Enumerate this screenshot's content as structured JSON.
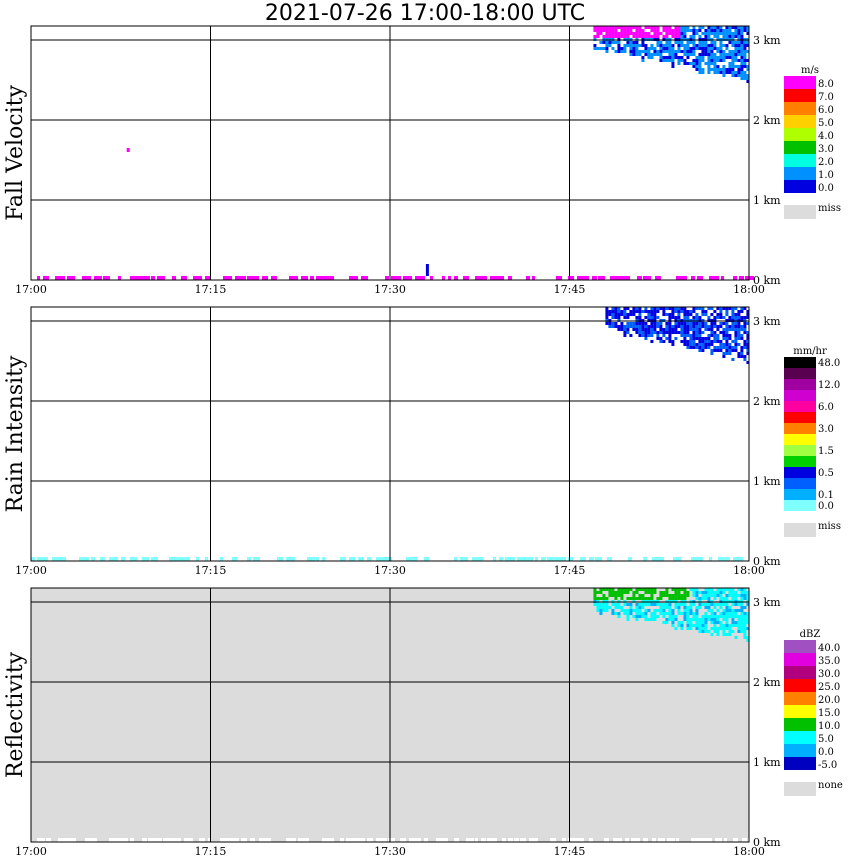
{
  "title": "2021-07-26   17:00-18:00 UTC",
  "x_ticks": [
    "17:00",
    "17:15",
    "17:30",
    "17:45",
    "18:00"
  ],
  "y_ticks": [
    "0 km",
    "1 km",
    "2 km",
    "3 km"
  ],
  "chart_data": [
    {
      "type": "heatmap",
      "ylabel": "Fall Velocity",
      "xlabel": "",
      "x_range": [
        "17:00",
        "18:00"
      ],
      "y_range_km": [
        0,
        3.2
      ],
      "grid": true,
      "background": "#ffffff",
      "colorbar": {
        "unit": "m/s",
        "labels": [
          "8.0",
          "7.0",
          "6.0",
          "5.0",
          "4.0",
          "3.0",
          "2.0",
          "1.0",
          "0.0"
        ],
        "colors": [
          "#ff00ff",
          "#ff0000",
          "#ff8000",
          "#ffd000",
          "#b0ff00",
          "#00c000",
          "#00ffe0",
          "#0090ff",
          "#0000e0"
        ],
        "missing_label": "miss",
        "missing_color": "#dcdcdc"
      },
      "echoes": [
        {
          "t_start": "17:47",
          "t_end": "18:00",
          "z_bottom_km": 2.55,
          "z_top_km": 3.2,
          "dominant": "1.0-2.0 m/s, top portion 7.0-8.0 m/s"
        },
        {
          "t_start": "17:00",
          "t_end": "18:00",
          "z_bottom_km": 0.0,
          "z_top_km": 0.05,
          "dominant": "8.0 m/s near-surface speckle"
        },
        {
          "t_start": "17:08",
          "t_end": "17:08",
          "z_bottom_km": 1.6,
          "z_top_km": 1.65,
          "dominant": "7.0-8.0 m/s"
        },
        {
          "t_start": "17:33",
          "t_end": "17:33",
          "z_bottom_km": 0.05,
          "z_top_km": 0.2,
          "dominant": "0.0-1.0 m/s"
        }
      ]
    },
    {
      "type": "heatmap",
      "ylabel": "Rain Intensity",
      "xlabel": "",
      "x_range": [
        "17:00",
        "18:00"
      ],
      "y_range_km": [
        0,
        3.2
      ],
      "grid": true,
      "background": "#ffffff",
      "colorbar": {
        "unit": "mm/hr",
        "labels": [
          "48.0",
          "",
          "12.0",
          "",
          "6.0",
          "",
          "3.0",
          "",
          "1.5",
          "",
          "0.5",
          "",
          "0.1",
          "0.0"
        ],
        "colors": [
          "#000000",
          "#5a0050",
          "#a000a0",
          "#d000d0",
          "#ff00a0",
          "#ff0000",
          "#ff8000",
          "#ffff00",
          "#a0ff40",
          "#00d000",
          "#0000e0",
          "#0060ff",
          "#00b0ff",
          "#80ffff"
        ],
        "missing_label": "miss",
        "missing_color": "#dcdcdc"
      },
      "echoes": [
        {
          "t_start": "17:48",
          "t_end": "18:00",
          "z_bottom_km": 2.55,
          "z_top_km": 3.2,
          "dominant": "0.5-1.5 mm/hr"
        },
        {
          "t_start": "17:00",
          "t_end": "18:00",
          "z_bottom_km": 0.0,
          "z_top_km": 0.05,
          "dominant": "0.0-0.1 mm/hr"
        }
      ]
    },
    {
      "type": "heatmap",
      "ylabel": "Reflectivity",
      "xlabel": "",
      "x_range": [
        "17:00",
        "18:00"
      ],
      "y_range_km": [
        0,
        3.2
      ],
      "grid": true,
      "background": "#dcdcdc",
      "colorbar": {
        "unit": "dBZ",
        "labels": [
          "40.0",
          "35.0",
          "30.0",
          "25.0",
          "20.0",
          "15.0",
          "10.0",
          "5.0",
          "0.0",
          "-5.0"
        ],
        "colors": [
          "#a050c0",
          "#e000e0",
          "#b00080",
          "#ff0000",
          "#ff8000",
          "#ffff00",
          "#00c000",
          "#00ffff",
          "#00b0ff",
          "#0000c0"
        ],
        "missing_label": "none",
        "missing_color": "#dcdcdc"
      },
      "echoes": [
        {
          "t_start": "17:47",
          "t_end": "18:00",
          "z_bottom_km": 2.55,
          "z_top_km": 3.2,
          "dominant": "5.0-10.0 dBZ, top 10.0-15.0 dBZ"
        },
        {
          "t_start": "17:00",
          "t_end": "18:00",
          "z_bottom_km": 0.0,
          "z_top_km": 0.05,
          "dominant": "no echo (white) near surface"
        }
      ]
    }
  ]
}
